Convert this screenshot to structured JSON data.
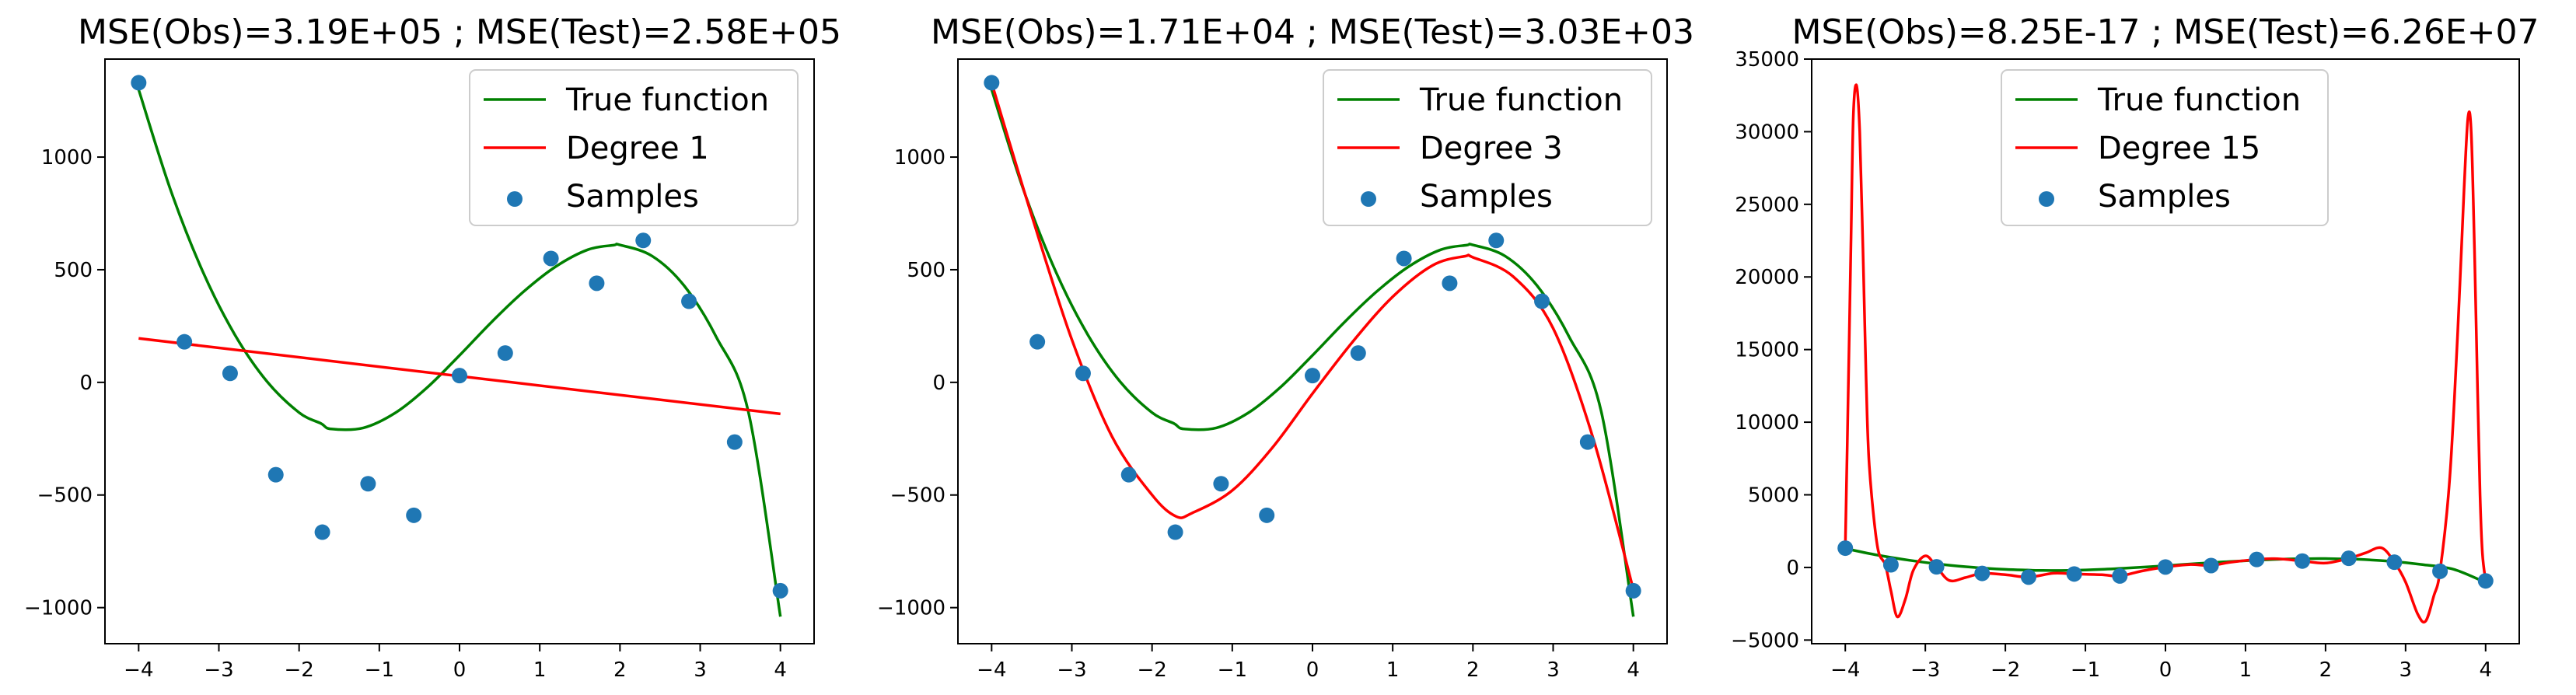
{
  "chart_data": [
    {
      "type": "line",
      "title": "MSE(Obs)=3.19E+05 ; MSE(Test)=2.58E+05",
      "xlim": [
        -4.42,
        4.42
      ],
      "ylim": [
        -1160,
        1435
      ],
      "xticks": [
        -4,
        -3,
        -2,
        -1,
        0,
        1,
        2,
        3,
        4
      ],
      "xtick_labels": [
        "−4",
        "−3",
        "−2",
        "−1",
        "0",
        "1",
        "2",
        "3",
        "4"
      ],
      "yticks": [
        -1000,
        -500,
        0,
        500,
        1000
      ],
      "ytick_labels": [
        "−1000",
        "−500",
        "0",
        "500",
        "1000"
      ],
      "grid": false,
      "legend_position": "top-right",
      "legend": [
        "True function",
        "Degree 1",
        "Samples"
      ],
      "colors": {
        "true": "#008000",
        "fit": "#ff0000",
        "samples": "#1f77b4"
      },
      "series": [
        {
          "name": "True function",
          "kind": "line",
          "color": "#008000",
          "x": [
            -4.0,
            -3.6,
            -3.2,
            -2.8,
            -2.4,
            -2.0,
            -1.73,
            -1.6,
            -1.2,
            -0.8,
            -0.4,
            0.0,
            0.4,
            0.8,
            1.2,
            1.6,
            1.92,
            2.0,
            2.4,
            2.8,
            3.2,
            3.6,
            4.0
          ],
          "y": [
            1300,
            852,
            491,
            211,
            4,
            -134,
            -182,
            -207,
            -202,
            -135,
            -22,
            120,
            268,
            403,
            514,
            589,
            609,
            610,
            561,
            429,
            202,
            -130,
            -1040
          ]
        },
        {
          "name": "Degree 1",
          "kind": "line",
          "color": "#ff0000",
          "x": [
            -4.0,
            4.0
          ],
          "y": [
            195,
            -140
          ]
        },
        {
          "name": "Samples",
          "kind": "scatter",
          "color": "#1f77b4",
          "x": [
            -4.0,
            -3.43,
            -2.86,
            -2.29,
            -1.71,
            -1.14,
            -0.57,
            0.0,
            0.57,
            1.14,
            1.71,
            2.29,
            2.86,
            3.43,
            4.0
          ],
          "y": [
            1330,
            180,
            40,
            -410,
            -665,
            -450,
            -590,
            30,
            130,
            550,
            440,
            630,
            360,
            -265,
            -925
          ]
        }
      ]
    },
    {
      "type": "line",
      "title": "MSE(Obs)=1.71E+04 ; MSE(Test)=3.03E+03",
      "xlim": [
        -4.42,
        4.42
      ],
      "ylim": [
        -1160,
        1435
      ],
      "xticks": [
        -4,
        -3,
        -2,
        -1,
        0,
        1,
        2,
        3,
        4
      ],
      "xtick_labels": [
        "−4",
        "−3",
        "−2",
        "−1",
        "0",
        "1",
        "2",
        "3",
        "4"
      ],
      "yticks": [
        -1000,
        -500,
        0,
        500,
        1000
      ],
      "ytick_labels": [
        "−1000",
        "−500",
        "0",
        "500",
        "1000"
      ],
      "grid": false,
      "legend_position": "top-right",
      "legend": [
        "True function",
        "Degree 3",
        "Samples"
      ],
      "colors": {
        "true": "#008000",
        "fit": "#ff0000",
        "samples": "#1f77b4"
      },
      "series": [
        {
          "name": "True function",
          "kind": "line",
          "color": "#008000",
          "x": [
            -4.0,
            -3.6,
            -3.2,
            -2.8,
            -2.4,
            -2.0,
            -1.73,
            -1.6,
            -1.2,
            -0.8,
            -0.4,
            0.0,
            0.4,
            0.8,
            1.2,
            1.6,
            1.92,
            2.0,
            2.4,
            2.8,
            3.2,
            3.6,
            4.0
          ],
          "y": [
            1300,
            852,
            491,
            211,
            4,
            -134,
            -182,
            -207,
            -202,
            -135,
            -22,
            120,
            268,
            403,
            514,
            589,
            609,
            610,
            561,
            429,
            202,
            -130,
            -1040
          ]
        },
        {
          "name": "Degree 3",
          "kind": "line",
          "color": "#ff0000",
          "x": [
            -4.0,
            -3.5,
            -3.0,
            -2.5,
            -2.0,
            -1.7,
            -1.5,
            -1.0,
            -0.5,
            0.0,
            0.5,
            1.0,
            1.5,
            1.9,
            2.0,
            2.5,
            3.0,
            3.5,
            4.0
          ],
          "y": [
            1330,
            740,
            190,
            -240,
            -500,
            -595,
            -580,
            -480,
            -290,
            -50,
            180,
            380,
            520,
            560,
            555,
            470,
            240,
            -250,
            -920
          ]
        },
        {
          "name": "Samples",
          "kind": "scatter",
          "color": "#1f77b4",
          "x": [
            -4.0,
            -3.43,
            -2.86,
            -2.29,
            -1.71,
            -1.14,
            -0.57,
            0.0,
            0.57,
            1.14,
            1.71,
            2.29,
            2.86,
            3.43,
            4.0
          ],
          "y": [
            1330,
            180,
            40,
            -410,
            -665,
            -450,
            -590,
            30,
            130,
            550,
            440,
            630,
            360,
            -265,
            -925
          ]
        }
      ]
    },
    {
      "type": "line",
      "title": "MSE(Obs)=8.25E-17 ; MSE(Test)=6.26E+07",
      "xlim": [
        -4.42,
        4.42
      ],
      "ylim": [
        -5250,
        35000
      ],
      "xticks": [
        -4,
        -3,
        -2,
        -1,
        0,
        1,
        2,
        3,
        4
      ],
      "xtick_labels": [
        "−4",
        "−3",
        "−2",
        "−1",
        "0",
        "1",
        "2",
        "3",
        "4"
      ],
      "yticks": [
        -5000,
        0,
        5000,
        10000,
        15000,
        20000,
        25000,
        30000,
        35000
      ],
      "ytick_labels": [
        "−5000",
        "0",
        "5000",
        "10000",
        "15000",
        "20000",
        "25000",
        "30000",
        "35000"
      ],
      "grid": false,
      "legend_position": "upper center",
      "legend": [
        "True function",
        "Degree 15",
        "Samples"
      ],
      "colors": {
        "true": "#008000",
        "fit": "#ff0000",
        "samples": "#1f77b4"
      },
      "series": [
        {
          "name": "True function",
          "kind": "line",
          "color": "#008000",
          "x": [
            -4.0,
            -3.6,
            -3.2,
            -2.8,
            -2.4,
            -2.0,
            -1.73,
            -1.6,
            -1.2,
            -0.8,
            -0.4,
            0.0,
            0.4,
            0.8,
            1.2,
            1.6,
            1.92,
            2.0,
            2.4,
            2.8,
            3.2,
            3.6,
            4.0
          ],
          "y": [
            1300,
            852,
            491,
            211,
            4,
            -134,
            -182,
            -207,
            -202,
            -135,
            -22,
            120,
            268,
            403,
            514,
            589,
            609,
            610,
            561,
            429,
            202,
            -130,
            -1040
          ]
        },
        {
          "name": "Degree 15",
          "kind": "line",
          "color": "#ff0000",
          "x": [
            -4.0,
            -3.97,
            -3.93,
            -3.9,
            -3.86,
            -3.82,
            -3.78,
            -3.74,
            -3.7,
            -3.6,
            -3.5,
            -3.43,
            -3.35,
            -3.25,
            -3.15,
            -3.0,
            -2.86,
            -2.7,
            -2.5,
            -2.29,
            -2.0,
            -1.71,
            -1.4,
            -1.14,
            -0.8,
            -0.57,
            -0.3,
            0.0,
            0.3,
            0.57,
            0.8,
            1.14,
            1.4,
            1.71,
            2.0,
            2.29,
            2.5,
            2.7,
            2.86,
            3.0,
            3.15,
            3.25,
            3.35,
            3.43,
            3.55,
            3.65,
            3.73,
            3.78,
            3.82,
            3.86,
            3.9,
            3.93,
            3.96,
            4.0
          ],
          "y": [
            1330,
            10000,
            22000,
            31000,
            33200,
            30000,
            22000,
            13000,
            7000,
            1500,
            180,
            -1600,
            -3400,
            -2200,
            -200,
            800,
            40,
            -900,
            -700,
            -410,
            -500,
            -665,
            -400,
            -450,
            -500,
            -590,
            -250,
            30,
            200,
            130,
            350,
            550,
            600,
            440,
            300,
            630,
            1000,
            1350,
            360,
            -1000,
            -3200,
            -3700,
            -2000,
            -265,
            6000,
            16000,
            26000,
            31000,
            30000,
            22000,
            12000,
            5000,
            1000,
            -925
          ]
        },
        {
          "name": "Samples",
          "kind": "scatter",
          "color": "#1f77b4",
          "x": [
            -4.0,
            -3.43,
            -2.86,
            -2.29,
            -1.71,
            -1.14,
            -0.57,
            0.0,
            0.57,
            1.14,
            1.71,
            2.29,
            2.86,
            3.43,
            4.0
          ],
          "y": [
            1330,
            180,
            40,
            -410,
            -665,
            -450,
            -590,
            30,
            130,
            550,
            440,
            630,
            360,
            -265,
            -925
          ]
        }
      ]
    }
  ]
}
